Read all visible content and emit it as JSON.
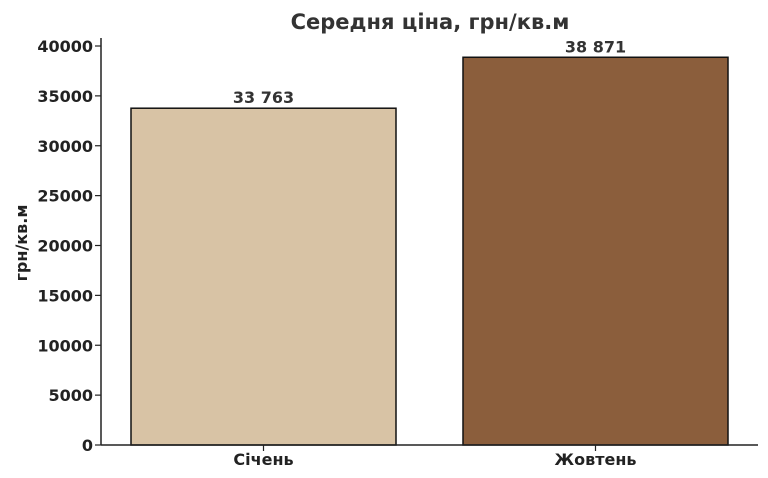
{
  "chart_data": {
    "type": "bar",
    "title": "Середня ціна, грн/кв.м",
    "xlabel": "",
    "ylabel": "грн/кв.м",
    "categories": [
      "Січень",
      "Жовтень"
    ],
    "values": [
      33763,
      38871
    ],
    "data_labels": [
      "33 763",
      "38 871"
    ],
    "colors": [
      "#D8C3A5",
      "#8B5E3C"
    ],
    "ylim": [
      0,
      40800
    ],
    "yticks": [
      0,
      5000,
      10000,
      15000,
      20000,
      25000,
      30000,
      35000,
      40000
    ],
    "grid": false,
    "legend": "none"
  }
}
